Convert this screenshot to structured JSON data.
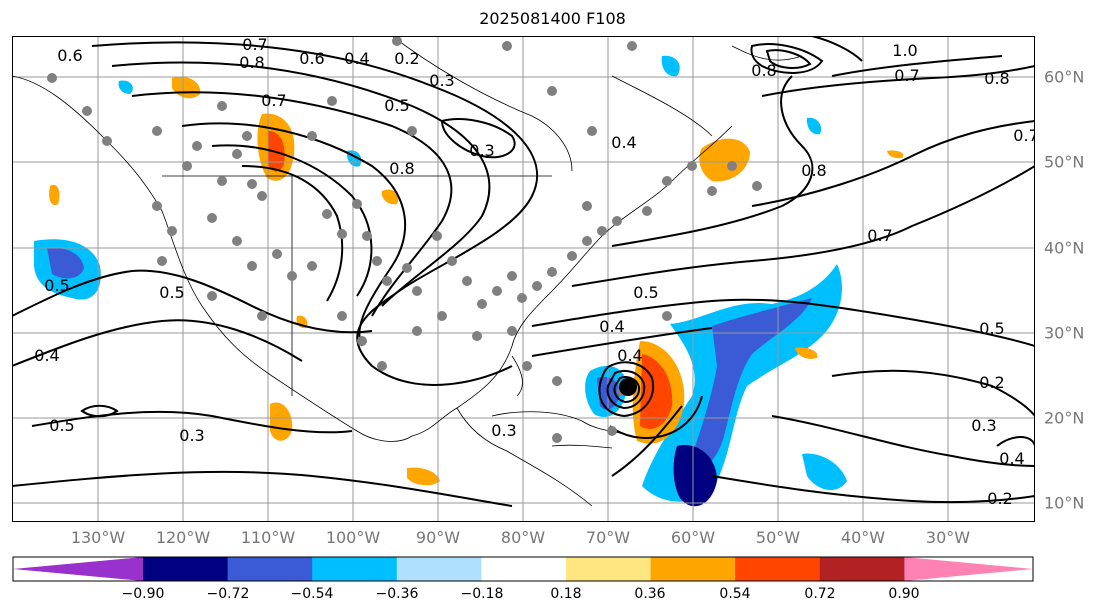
{
  "title": "2025081400 F108",
  "lon_labels": [
    "130°W",
    "120°W",
    "110°W",
    "100°W",
    "90°W",
    "80°W",
    "70°W",
    "60°W",
    "50°W",
    "40°W",
    "30°W"
  ],
  "lat_labels": [
    "60°N",
    "50°N",
    "40°N",
    "30°N",
    "20°N",
    "10°N"
  ],
  "contour_labels": [
    "0.7",
    "0.6",
    "0.4",
    "0.2",
    "0.3",
    "0.8",
    "0.5",
    "0.6",
    "0.7",
    "0.3",
    "0.8",
    "0.4",
    "0.8",
    "0.7",
    "1.0",
    "0.8",
    "0.7",
    "0.8",
    "0.7",
    "0.5",
    "0.5",
    "0.4",
    "0.5",
    "0.4",
    "0.5",
    "0.3",
    "0.3",
    "0.2",
    "0.3",
    "0.2",
    "0.5",
    "0.4",
    "0.4"
  ],
  "colorbar": {
    "ticks": [
      "−0.90",
      "−0.72",
      "−0.54",
      "−0.36",
      "−0.18",
      "0.18",
      "0.36",
      "0.54",
      "0.72",
      "0.90"
    ],
    "colors": [
      "#9932cc",
      "#000080",
      "#3b5bd6",
      "#00bfff",
      "#b0e0ff",
      "#ffffff",
      "#ffe680",
      "#ffa500",
      "#ff4500",
      "#b22222",
      "#ff82b4"
    ]
  }
}
